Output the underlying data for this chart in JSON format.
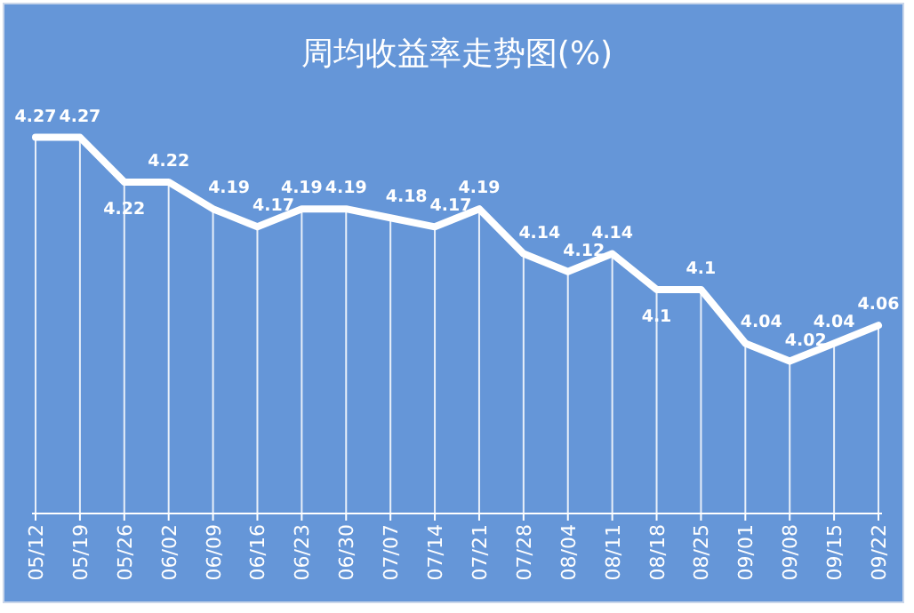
{
  "chart_data": {
    "type": "line",
    "title": "周均收益率走势图(%)",
    "categories": [
      "05/12",
      "05/19",
      "05/26",
      "06/02",
      "06/09",
      "06/16",
      "06/23",
      "06/30",
      "07/07",
      "07/14",
      "07/21",
      "07/28",
      "08/04",
      "08/11",
      "08/18",
      "08/25",
      "09/01",
      "09/08",
      "09/15",
      "09/22"
    ],
    "series": [
      {
        "color": "#ffffff",
        "values": [
          4.27,
          4.27,
          4.22,
          4.22,
          4.19,
          4.17,
          4.19,
          4.19,
          4.18,
          4.17,
          4.19,
          4.14,
          4.12,
          4.14,
          4.1,
          4.1,
          4.04,
          4.02,
          4.04,
          4.06
        ]
      }
    ],
    "tick_labels": "x",
    "data_labels": true,
    "grid": "x",
    "marker": "none",
    "line_style": "solid"
  }
}
